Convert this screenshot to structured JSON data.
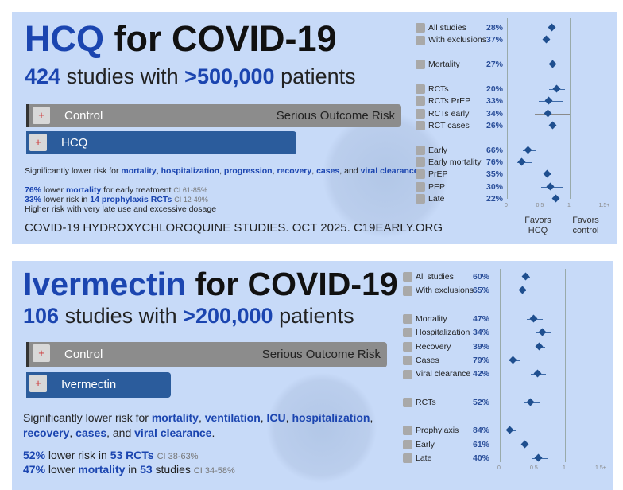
{
  "panels": [
    {
      "drug": "HCQ",
      "title_rest": "for COVID-19",
      "study_count": "424",
      "studies_text": "studies with",
      "patients": ">500,000",
      "patients_text": "patients",
      "control_label": "Control",
      "risk_label": "Serious Outcome Risk",
      "treatment_label": "HCQ",
      "treatment_risk": 0.72,
      "summary": {
        "prefix": "Significantly lower risk for ",
        "items": [
          "mortality",
          "hospitalization",
          "progression",
          "recovery",
          "cases",
          "viral clearance"
        ],
        "and": "and"
      },
      "lines": [
        {
          "b1": "76%",
          "t1": " lower ",
          "b2": "mortality",
          "t2": " for early treatment ",
          "ci": "CI 61-85%"
        },
        {
          "b1": "33%",
          "t1": " lower risk in ",
          "b2": "14 prophylaxis RCTs",
          "t2": " ",
          "ci": "CI 12-49%"
        },
        {
          "b1": "",
          "t1": "Higher risk with very late use and excessive dosage",
          "b2": "",
          "t2": "",
          "ci": ""
        }
      ],
      "footer": "COVID-19 HYDROXYCHLOROQUINE STUDIES. OCT 2025. C19EARLY.ORG",
      "favors_left": "Favors HCQ",
      "favors_right": "Favors control"
    },
    {
      "drug": "Ivermectin",
      "title_rest": "for COVID-19",
      "study_count": "106",
      "studies_text": "studies with",
      "patients": ">200,000",
      "patients_text": "patients",
      "control_label": "Control",
      "risk_label": "Serious Outcome Risk",
      "treatment_label": "Ivermectin",
      "treatment_risk": 0.4,
      "summary": {
        "prefix": "Significantly lower risk for ",
        "items": [
          "mortality",
          "ventilation",
          "ICU",
          "hospitalization",
          "recovery",
          "cases",
          "viral clearance"
        ],
        "and": "and"
      },
      "lines": [
        {
          "b1": "52%",
          "t1": " lower risk in ",
          "b2": "53 RCTs",
          "t2": " ",
          "ci": "CI 38-63%"
        },
        {
          "b1": "47%",
          "t1": " lower ",
          "b2": "mortality",
          "t2": " in ",
          "b3": "53",
          "t3": " studies ",
          "ci": "CI 34-58%"
        }
      ]
    }
  ],
  "chart_data": [
    {
      "type": "forest",
      "xlim": [
        0,
        1.5
      ],
      "xticks": [
        "0",
        "0.5",
        "1",
        "1.5+"
      ],
      "reference": 1,
      "xlabel_left": "Favors HCQ",
      "xlabel_right": "Favors control",
      "rows": [
        {
          "label": "All studies",
          "pct": "28%",
          "value": 0.72,
          "lo": 0.69,
          "hi": 0.75,
          "icon": "studies-icon"
        },
        {
          "label": "With exclusions",
          "pct": "37%",
          "value": 0.63,
          "lo": 0.6,
          "hi": 0.66,
          "icon": "studies-icon"
        },
        {
          "label": "Mortality",
          "pct": "27%",
          "value": 0.73,
          "lo": 0.7,
          "hi": 0.76,
          "icon": "tombstone-icon",
          "gap": true
        },
        {
          "label": "RCTs",
          "pct": "20%",
          "value": 0.8,
          "lo": 0.67,
          "hi": 0.92,
          "icon": "rct-icon",
          "gap": true
        },
        {
          "label": "RCTs PrEP",
          "pct": "33%",
          "value": 0.67,
          "lo": 0.51,
          "hi": 0.88,
          "icon": "prep-icon"
        },
        {
          "label": "RCTs early",
          "pct": "34%",
          "value": 0.66,
          "lo": 0.44,
          "hi": 1.0,
          "icon": "early-icon"
        },
        {
          "label": "RCT cases",
          "pct": "26%",
          "value": 0.74,
          "lo": 0.62,
          "hi": 0.88,
          "icon": "cases-icon"
        },
        {
          "label": "Early",
          "pct": "66%",
          "value": 0.34,
          "lo": 0.25,
          "hi": 0.46,
          "icon": "studies-icon",
          "gap": true
        },
        {
          "label": "Early mortality",
          "pct": "76%",
          "value": 0.24,
          "lo": 0.15,
          "hi": 0.39,
          "icon": "tombstone-icon"
        },
        {
          "label": "PrEP",
          "pct": "35%",
          "value": 0.65,
          "lo": 0.6,
          "hi": 0.7,
          "icon": "prep-icon"
        },
        {
          "label": "PEP",
          "pct": "30%",
          "value": 0.7,
          "lo": 0.55,
          "hi": 0.9,
          "icon": "prep-icon"
        },
        {
          "label": "Late",
          "pct": "22%",
          "value": 0.78,
          "lo": 0.74,
          "hi": 0.82,
          "icon": "late-icon"
        }
      ]
    },
    {
      "type": "forest",
      "xlim": [
        0,
        1.5
      ],
      "xticks": [
        "0",
        "0.5",
        "1",
        "1.5+"
      ],
      "reference": 1,
      "rows": [
        {
          "label": "All studies",
          "pct": "60%",
          "value": 0.4,
          "lo": 0.35,
          "hi": 0.46,
          "icon": "studies-icon"
        },
        {
          "label": "With exclusions",
          "pct": "65%",
          "value": 0.35,
          "lo": 0.31,
          "hi": 0.4,
          "icon": "studies-icon"
        },
        {
          "label": "Mortality",
          "pct": "47%",
          "value": 0.53,
          "lo": 0.42,
          "hi": 0.66,
          "icon": "tombstone-icon",
          "gap": true
        },
        {
          "label": "Hospitalization",
          "pct": "34%",
          "value": 0.66,
          "lo": 0.56,
          "hi": 0.78,
          "icon": "hospital-icon"
        },
        {
          "label": "Recovery",
          "pct": "39%",
          "value": 0.61,
          "lo": 0.55,
          "hi": 0.69,
          "icon": "recovery-icon"
        },
        {
          "label": "Cases",
          "pct": "79%",
          "value": 0.21,
          "lo": 0.15,
          "hi": 0.3,
          "icon": "cases-icon"
        },
        {
          "label": "Viral clearance",
          "pct": "42%",
          "value": 0.58,
          "lo": 0.48,
          "hi": 0.71,
          "icon": "virus-icon"
        },
        {
          "label": "RCTs",
          "pct": "52%",
          "value": 0.48,
          "lo": 0.37,
          "hi": 0.62,
          "icon": "rct-icon",
          "gap": true
        },
        {
          "label": "Prophylaxis",
          "pct": "84%",
          "value": 0.16,
          "lo": 0.11,
          "hi": 0.25,
          "icon": "prep-icon",
          "gap": true
        },
        {
          "label": "Early",
          "pct": "61%",
          "value": 0.39,
          "lo": 0.29,
          "hi": 0.5,
          "icon": "early-icon"
        },
        {
          "label": "Late",
          "pct": "40%",
          "value": 0.6,
          "lo": 0.49,
          "hi": 0.74,
          "icon": "late-icon"
        }
      ]
    }
  ]
}
